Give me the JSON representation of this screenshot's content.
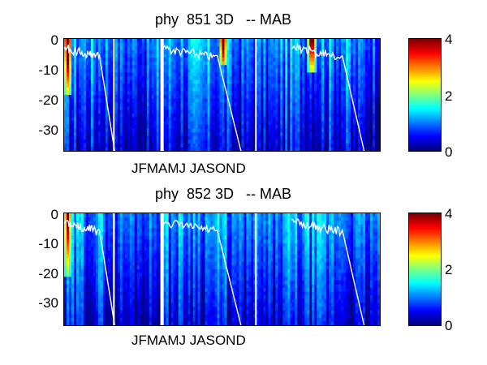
{
  "chart_data": [
    {
      "type": "heatmap",
      "title": "phy  851 3D   -- MAB",
      "xlabel": "",
      "ylabel": "",
      "x_tick_label": "JFMAMJ JASOND",
      "y_ticks": [
        "0",
        "-10",
        "-20",
        "-30"
      ],
      "ylim": [
        -37,
        0
      ],
      "colorbar": {
        "ticks": [
          "0",
          "2",
          "4"
        ],
        "range": [
          0,
          4
        ],
        "colormap": "jet"
      },
      "mixed_layer_line_color": "#ffffff",
      "peaks": [
        {
          "year_fraction": 0.02,
          "depth_range": [
            0,
            -18
          ],
          "value": 4
        },
        {
          "year_fraction": 1.3,
          "depth_range": [
            0,
            -8
          ],
          "value": 3.5
        },
        {
          "year_fraction": 2.03,
          "depth_range": [
            0,
            -10
          ],
          "value": 3.8
        }
      ]
    },
    {
      "type": "heatmap",
      "title": "phy  852 3D   -- MAB",
      "xlabel": "",
      "ylabel": "",
      "x_tick_label": "JFMAMJ JASOND",
      "y_ticks": [
        "0",
        "-10",
        "-20",
        "-30"
      ],
      "ylim": [
        -37,
        0
      ],
      "colorbar": {
        "ticks": [
          "0",
          "2",
          "4"
        ],
        "range": [
          0,
          4
        ],
        "colormap": "jet"
      },
      "mixed_layer_line_color": "#ffffff",
      "peaks": [
        {
          "year_fraction": 0.02,
          "depth_range": [
            0,
            -20
          ],
          "value": 3.2
        }
      ]
    }
  ]
}
